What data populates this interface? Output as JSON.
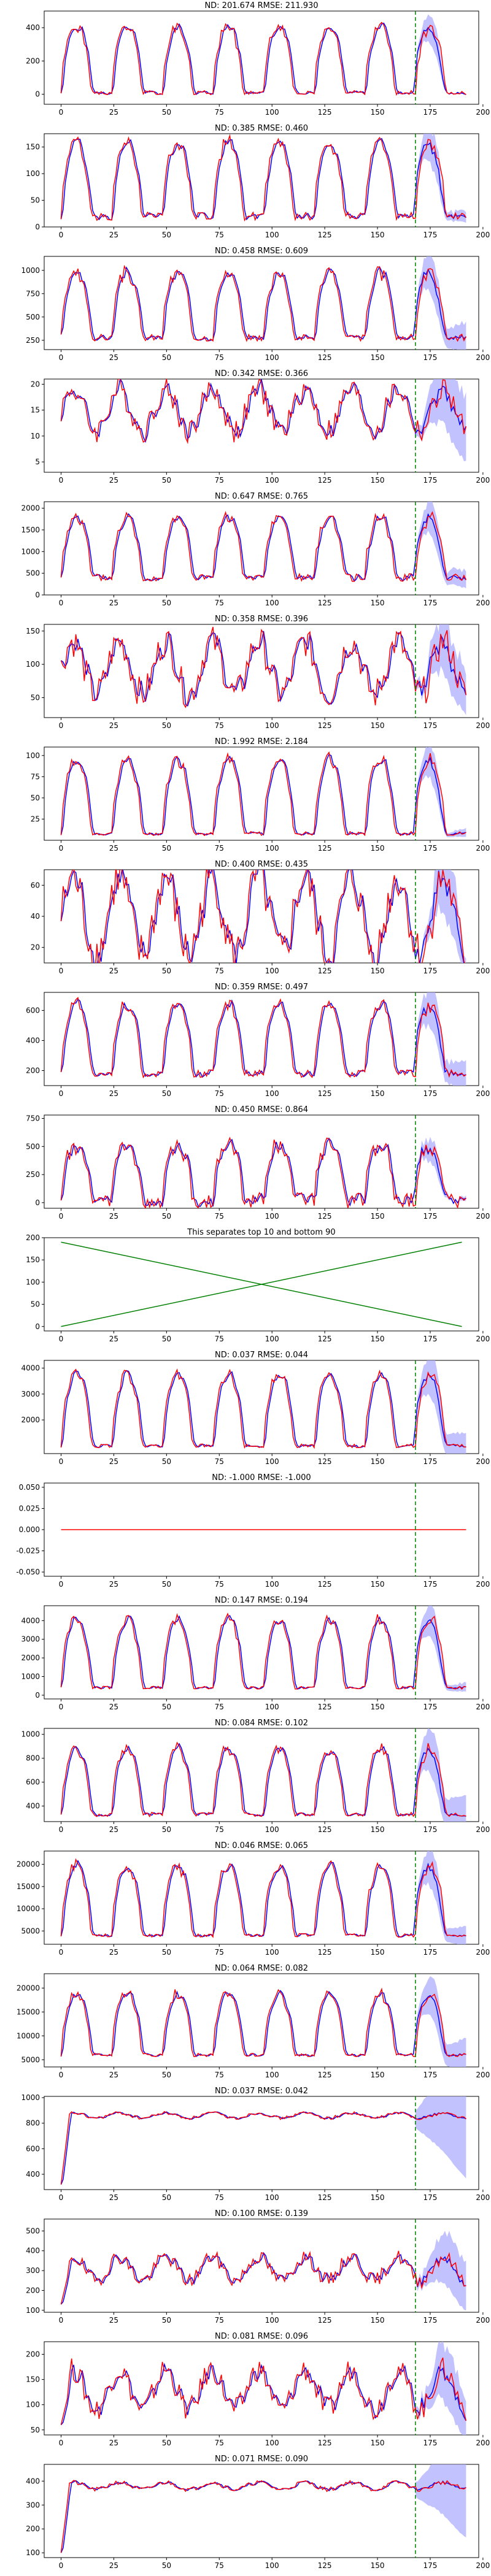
{
  "chart_data": [
    {
      "type": "line",
      "title": "ND:  201.674 RMSE:  211.930",
      "xlim": [
        -8,
        198
      ],
      "ylim": [
        -60,
        500
      ],
      "yticks": [
        0,
        200,
        400
      ],
      "forecast_start": 168,
      "gen": {
        "kind": "forecast",
        "scale": 430,
        "base": 10,
        "noise": 0.06,
        "seed": 1
      }
    },
    {
      "type": "line",
      "title": "ND:  0.385 RMSE:  0.460",
      "xlim": [
        -8,
        198
      ],
      "ylim": [
        0,
        175
      ],
      "yticks": [
        0,
        50,
        100,
        150
      ],
      "forecast_start": 168,
      "gen": {
        "kind": "forecast",
        "scale": 150,
        "base": 20,
        "noise": 0.1,
        "seed": 2
      }
    },
    {
      "type": "line",
      "title": "ND:  0.458 RMSE:  0.609",
      "xlim": [
        -8,
        198
      ],
      "ylim": [
        150,
        1150
      ],
      "yticks": [
        250,
        500,
        750,
        1000
      ],
      "forecast_start": 168,
      "gen": {
        "kind": "forecast",
        "scale": 750,
        "base": 280,
        "noise": 0.1,
        "seed": 3
      }
    },
    {
      "type": "line",
      "title": "ND:  0.342 RMSE:  0.366",
      "xlim": [
        -8,
        198
      ],
      "ylim": [
        3,
        21
      ],
      "yticks": [
        5,
        10,
        15,
        20
      ],
      "forecast_start": 168,
      "gen": {
        "kind": "noisy",
        "level": 15,
        "amp": 4,
        "seed": 4
      }
    },
    {
      "type": "line",
      "title": "ND:  0.647 RMSE:  0.765",
      "xlim": [
        -8,
        198
      ],
      "ylim": [
        0,
        2150
      ],
      "yticks": [
        0,
        500,
        1000,
        1500,
        2000
      ],
      "forecast_start": 168,
      "gen": {
        "kind": "forecast",
        "scale": 1500,
        "base": 400,
        "noise": 0.12,
        "seed": 5
      }
    },
    {
      "type": "line",
      "title": "ND:  0.358 RMSE:  0.396",
      "xlim": [
        -8,
        198
      ],
      "ylim": [
        20,
        160
      ],
      "yticks": [
        50,
        100,
        150
      ],
      "forecast_start": 168,
      "gen": {
        "kind": "noisy",
        "level": 95,
        "amp": 40,
        "seed": 6
      }
    },
    {
      "type": "line",
      "title": "ND:  1.992 RMSE:  2.184",
      "xlim": [
        -8,
        198
      ],
      "ylim": [
        0,
        110
      ],
      "yticks": [
        25,
        50,
        75,
        100
      ],
      "forecast_start": 168,
      "gen": {
        "kind": "forecast",
        "scale": 95,
        "base": 8,
        "noise": 0.05,
        "seed": 7
      }
    },
    {
      "type": "line",
      "title": "ND:  0.400 RMSE:  0.435",
      "xlim": [
        -8,
        198
      ],
      "ylim": [
        10,
        70
      ],
      "yticks": [
        20,
        40,
        60
      ],
      "forecast_start": 168,
      "gen": {
        "kind": "noisy",
        "level": 40,
        "amp": 25,
        "seed": 8
      }
    },
    {
      "type": "line",
      "title": "ND:  0.359 RMSE:  0.497",
      "xlim": [
        -8,
        198
      ],
      "ylim": [
        100,
        720
      ],
      "yticks": [
        200,
        400,
        600
      ],
      "forecast_start": 168,
      "gen": {
        "kind": "forecast",
        "scale": 500,
        "base": 180,
        "noise": 0.1,
        "seed": 9
      }
    },
    {
      "type": "line",
      "title": "ND:  0.450 RMSE:  0.864",
      "xlim": [
        -8,
        198
      ],
      "ylim": [
        -50,
        780
      ],
      "yticks": [
        0,
        250,
        500,
        750
      ],
      "forecast_start": 168,
      "gen": {
        "kind": "forecast",
        "scale": 550,
        "base": 20,
        "noise": 0.25,
        "seed": 10
      }
    },
    {
      "type": "line",
      "title": "This separates top 10 and bottom 90",
      "xlim": [
        -8,
        198
      ],
      "ylim": [
        -10,
        200
      ],
      "yticks": [
        0,
        50,
        100,
        150,
        200
      ],
      "forecast_start": null,
      "gen": {
        "kind": "cross",
        "top": 190
      }
    },
    {
      "type": "line",
      "title": "ND:  0.037 RMSE:  0.044",
      "xlim": [
        -8,
        198
      ],
      "ylim": [
        700,
        4300
      ],
      "yticks": [
        2000,
        3000,
        4000
      ],
      "forecast_start": 168,
      "gen": {
        "kind": "forecast",
        "scale": 3000,
        "base": 1000,
        "noise": 0.05,
        "seed": 12
      }
    },
    {
      "type": "line",
      "title": "ND:  -1.000 RMSE:  -1.000",
      "xlim": [
        -8,
        198
      ],
      "ylim": [
        -0.055,
        0.055
      ],
      "yticks": [
        -0.05,
        -0.025,
        0.0,
        0.025,
        0.05
      ],
      "forecast_start": 168,
      "gen": {
        "kind": "flat"
      }
    },
    {
      "type": "line",
      "title": "ND:  0.147 RMSE:  0.194",
      "xlim": [
        -8,
        198
      ],
      "ylim": [
        -200,
        4800
      ],
      "yticks": [
        0,
        1000,
        2000,
        3000,
        4000
      ],
      "forecast_start": 168,
      "gen": {
        "kind": "forecast",
        "scale": 4000,
        "base": 400,
        "noise": 0.04,
        "seed": 14
      }
    },
    {
      "type": "line",
      "title": "ND:  0.084 RMSE:  0.102",
      "xlim": [
        -8,
        198
      ],
      "ylim": [
        270,
        1050
      ],
      "yticks": [
        400,
        600,
        800,
        1000
      ],
      "forecast_start": 168,
      "gen": {
        "kind": "forecast",
        "scale": 600,
        "base": 330,
        "noise": 0.06,
        "seed": 15
      }
    },
    {
      "type": "line",
      "title": "ND:  0.046 RMSE:  0.065",
      "xlim": [
        -8,
        198
      ],
      "ylim": [
        2000,
        23000
      ],
      "yticks": [
        5000,
        10000,
        15000,
        20000
      ],
      "forecast_start": 168,
      "gen": {
        "kind": "forecast",
        "scale": 17000,
        "base": 4000,
        "noise": 0.05,
        "seed": 16
      }
    },
    {
      "type": "line",
      "title": "ND:  0.064 RMSE:  0.082",
      "xlim": [
        -8,
        198
      ],
      "ylim": [
        3500,
        23000
      ],
      "yticks": [
        5000,
        10000,
        15000,
        20000
      ],
      "forecast_start": 168,
      "gen": {
        "kind": "forecast",
        "scale": 14000,
        "base": 6000,
        "noise": 0.05,
        "seed": 17
      }
    },
    {
      "type": "line",
      "title": "ND:  0.037 RMSE:  0.042",
      "xlim": [
        -8,
        198
      ],
      "ylim": [
        280,
        1010
      ],
      "yticks": [
        400,
        600,
        800,
        1000
      ],
      "forecast_start": 168,
      "gen": {
        "kind": "noisy",
        "level": 860,
        "amp": 20,
        "start": 320,
        "seed": 18
      }
    },
    {
      "type": "line",
      "title": "ND:  0.100 RMSE:  0.139",
      "xlim": [
        -8,
        198
      ],
      "ylim": [
        90,
        560
      ],
      "yticks": [
        100,
        200,
        300,
        400,
        500
      ],
      "forecast_start": 168,
      "gen": {
        "kind": "noisy",
        "level": 310,
        "amp": 60,
        "start": 130,
        "seed": 19
      }
    },
    {
      "type": "line",
      "title": "ND:  0.081 RMSE:  0.096",
      "xlim": [
        -8,
        198
      ],
      "ylim": [
        40,
        225
      ],
      "yticks": [
        50,
        100,
        150,
        200
      ],
      "forecast_start": 168,
      "gen": {
        "kind": "noisy",
        "level": 130,
        "amp": 40,
        "start": 60,
        "seed": 20
      }
    },
    {
      "type": "line",
      "title": "ND:  0.071 RMSE:  0.090",
      "xlim": [
        -8,
        198
      ],
      "ylim": [
        80,
        470
      ],
      "yticks": [
        100,
        200,
        300,
        400
      ],
      "forecast_start": 168,
      "gen": {
        "kind": "noisy",
        "level": 380,
        "amp": 15,
        "start": 100,
        "seed": 21
      }
    }
  ],
  "shared": {
    "xticks": [
      0,
      25,
      50,
      75,
      100,
      125,
      150,
      175,
      200
    ],
    "colors": {
      "actual": "#ff0000",
      "forecast": "#0000ff",
      "band": "#b3b3ff",
      "forecast_start": "#008000",
      "cross": "#008000"
    }
  }
}
